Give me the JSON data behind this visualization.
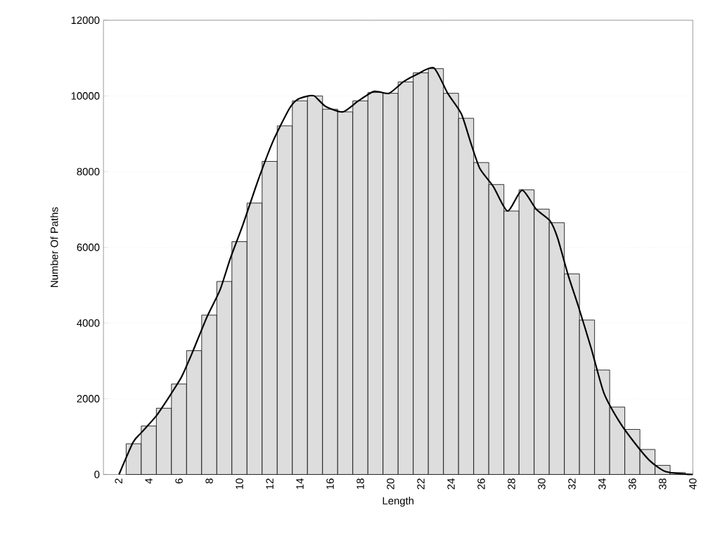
{
  "chart_data": {
    "type": "histogram",
    "xlabel": "Length",
    "ylabel": "Number Of Paths",
    "bins": [
      2.5,
      3.5,
      4.5,
      5.5,
      6.5,
      7.5,
      8.5,
      9.5,
      10.5,
      11.5,
      12.5,
      13.5,
      14.5,
      15.5,
      16.5,
      17.5,
      18.5,
      19.5,
      20.5,
      21.5,
      22.5,
      23.5,
      24.5,
      25.5,
      26.5,
      27.5,
      28.5,
      29.5,
      30.5,
      31.5,
      32.5,
      33.5,
      34.5,
      35.5,
      36.5,
      37.5,
      38.5,
      39.5
    ],
    "values": [
      810,
      1280,
      1750,
      2390,
      3270,
      4210,
      5100,
      6150,
      7170,
      8270,
      9210,
      9870,
      10000,
      9650,
      9580,
      9870,
      10090,
      10070,
      10370,
      10610,
      10720,
      10070,
      9410,
      8240,
      7660,
      6960,
      7520,
      7010,
      6650,
      5300,
      4080,
      2760,
      1780,
      1190,
      660,
      240,
      50
    ],
    "color": "#dddddd",
    "series": [
      {
        "type": "line",
        "color": "#000000",
        "x": [
          2.03,
          2.96,
          3.47,
          4.48,
          5.41,
          6.17,
          6.86,
          7.86,
          8.71,
          9.39,
          10.23,
          11.24,
          12.24,
          13.28,
          13.78,
          14.46,
          14.95,
          15.71,
          16.85,
          17.84,
          18.91,
          19.9,
          20.87,
          21.79,
          22.87,
          23.78,
          24.69,
          25.3,
          25.9,
          26.81,
          27.74,
          28.7,
          29.63,
          30.55,
          31.05,
          31.74,
          32.42,
          33.27,
          34.11,
          35.13,
          36.12,
          37.16,
          38.17,
          39.46,
          40
        ],
        "values": [
          0,
          850,
          1090,
          1540,
          2090,
          2580,
          3200,
          4170,
          4870,
          5700,
          6600,
          7780,
          8820,
          9650,
          9890,
          9990,
          10000,
          9720,
          9580,
          9860,
          10120,
          10070,
          10380,
          10580,
          10740,
          10070,
          9520,
          8770,
          8090,
          7600,
          6960,
          7510,
          7010,
          6700,
          6250,
          5280,
          4450,
          3340,
          2160,
          1400,
          850,
          360,
          80,
          10,
          0
        ]
      }
    ],
    "xlim": [
      1,
      40
    ],
    "ylim": [
      0,
      12000
    ],
    "xticks": [
      2,
      4,
      6,
      8,
      10,
      12,
      14,
      16,
      18,
      20,
      22,
      24,
      26,
      28,
      30,
      32,
      34,
      36,
      38,
      40
    ],
    "yticks": [
      0,
      2000,
      4000,
      6000,
      8000,
      10000,
      12000
    ],
    "grid": "y"
  }
}
